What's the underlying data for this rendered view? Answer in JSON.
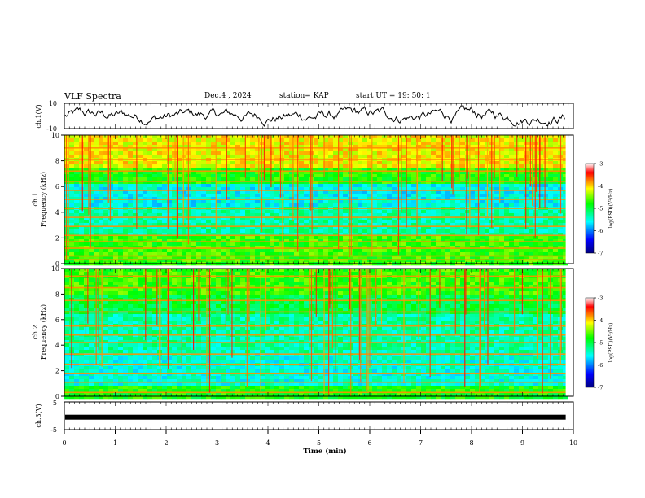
{
  "header": {
    "title": "VLF Spectra",
    "date": "Dec.4 , 2024",
    "station": "station= KAP",
    "start": "start UT =  19: 50: 1"
  },
  "chart_data": {
    "type": "heatmap",
    "panels": {
      "ch1_wave": {
        "ylabel": "ch.1(V)",
        "ylim": [
          -10,
          10
        ],
        "yticks": [
          "10",
          "-10"
        ]
      },
      "ch1_spec": {
        "ylabel1": "ch.1",
        "ylabel2": "Frequency  (kHz)",
        "ylim": [
          0,
          10
        ],
        "yticks": [
          "0",
          "2",
          "4",
          "6",
          "8",
          "10"
        ],
        "bands_khz": [
          0.3,
          0.6,
          1.2,
          1.7,
          2.2,
          2.9,
          3.6,
          4.3,
          5.0,
          5.7,
          6.4,
          7.2,
          8.1,
          9.0
        ]
      },
      "ch2_spec": {
        "ylabel1": "ch.2",
        "ylabel2": "Frequency  (kHz)",
        "ylim": [
          0,
          10
        ],
        "yticks": [
          "0",
          "2",
          "4",
          "6",
          "8",
          "10"
        ],
        "bands_khz": [
          0.3,
          1.1,
          1.8,
          2.5,
          3.3,
          4.2,
          4.8,
          5.5,
          6.6,
          7.5,
          8.5,
          9.4
        ]
      },
      "ch3_wave": {
        "ylabel": "ch.3(V)",
        "ylim": [
          -5,
          5
        ],
        "yticks": [
          "5",
          "-5"
        ],
        "level_v": -0.5
      }
    },
    "x": {
      "label": "Time  (min)",
      "range": [
        0,
        10
      ],
      "ticks": [
        "0",
        "1",
        "2",
        "3",
        "4",
        "5",
        "6",
        "7",
        "8",
        "9",
        "10"
      ],
      "data_end": 9.85
    },
    "colorbar": {
      "label": "log(PSD)(V²/Hz)",
      "range": [
        -7,
        -3
      ],
      "ticks": [
        "-3",
        "-4",
        "-5",
        "-6",
        "-7"
      ],
      "colors": [
        "#000080",
        "#0000ff",
        "#00ffff",
        "#00ff00",
        "#ffff00",
        "#ff0000",
        "#ffffff"
      ]
    }
  }
}
